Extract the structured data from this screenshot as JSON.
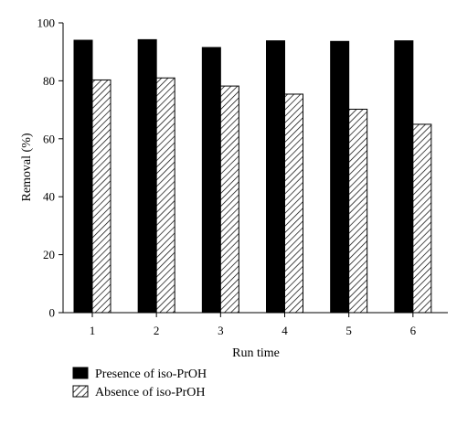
{
  "chart_data": {
    "type": "bar",
    "title": "",
    "xlabel": "Run time",
    "ylabel": "Removal (%)",
    "categories": [
      "1",
      "2",
      "3",
      "4",
      "5",
      "6"
    ],
    "ylim": [
      0,
      100
    ],
    "yticks": [
      0,
      20,
      40,
      60,
      80,
      100
    ],
    "grid": false,
    "legend_position": "bottom-left",
    "series": [
      {
        "name": "Presence of iso-PrOH",
        "pattern": "solid",
        "color": "#000000",
        "values": [
          94,
          94.2,
          91.5,
          93.8,
          93.6,
          93.8
        ]
      },
      {
        "name": "Absence of iso-PrOH",
        "pattern": "diagonal-hatch",
        "color": "#000000",
        "values": [
          80.3,
          81,
          78.2,
          75.4,
          70.2,
          65
        ]
      }
    ]
  }
}
